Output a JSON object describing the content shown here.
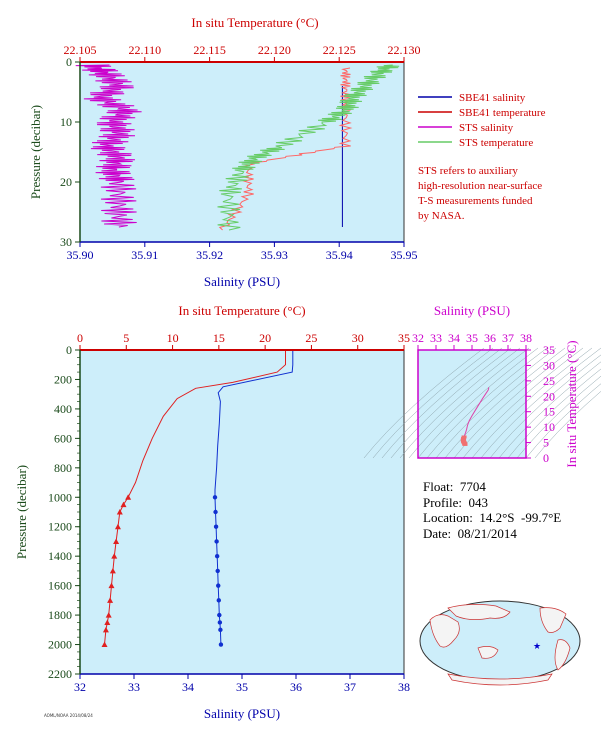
{
  "colors": {
    "red": "#cc0000",
    "blue": "#0000aa",
    "green": "#1a4a1a",
    "magenta": "#cc00cc",
    "bg": "#cdeefa",
    "sts_green": "#66cc66",
    "sts_magenta": "#cc00cc",
    "sbe_red": "#ff6666"
  },
  "top_chart": {
    "title_top": "In situ Temperature (°C)",
    "title_bottom": "Salinity (PSU)",
    "ylabel": "Pressure (decibar)",
    "temp_ticks": [
      "22.105",
      "22.110",
      "22.115",
      "22.120",
      "22.125",
      "22.130"
    ],
    "sal_ticks": [
      "35.90",
      "35.91",
      "35.92",
      "35.93",
      "35.94",
      "35.95"
    ],
    "p_ticks": [
      "0",
      "10",
      "20",
      "30"
    ],
    "legend": [
      {
        "label": "SBE41 salinity",
        "color": "#0000aa"
      },
      {
        "label": "SBE41 temperature",
        "color": "#cc0000"
      },
      {
        "label": "STS salinity",
        "color": "#cc00cc"
      },
      {
        "label": "STS temperature",
        "color": "#66cc66"
      }
    ],
    "note": [
      "STS refers to auxiliary",
      "high-resolution near-surface",
      "T-S measurements funded",
      "by NASA."
    ]
  },
  "main_chart": {
    "title_top": "In situ Temperature (°C)",
    "title_bottom": "Salinity (PSU)",
    "ylabel": "Pressure (decibar)",
    "temp_ticks": [
      "0",
      "5",
      "10",
      "15",
      "20",
      "25",
      "30",
      "35"
    ],
    "sal_ticks": [
      "32",
      "33",
      "34",
      "35",
      "36",
      "37",
      "38"
    ],
    "p_ticks": [
      "0",
      "200",
      "400",
      "600",
      "800",
      "1000",
      "1200",
      "1400",
      "1600",
      "1800",
      "2000",
      "2200"
    ]
  },
  "ts_chart": {
    "title": "Salinity (PSU)",
    "ylabel": "In situ Temperature (°C)",
    "sal_ticks": [
      "32",
      "33",
      "34",
      "35",
      "36",
      "37",
      "38"
    ],
    "temp_ticks": [
      "0",
      "5",
      "10",
      "15",
      "20",
      "25",
      "30",
      "35"
    ]
  },
  "info": {
    "float": "Float:  7704",
    "profile": "Profile:  043",
    "location": "Location:  14.2°S  -99.7°E",
    "date": "Date:  08/21/2014"
  },
  "footer": "AOML/NOAA 2014/08/24",
  "chart_data": [
    {
      "type": "line",
      "xlabel": "Salinity (PSU)",
      "x2label": "In situ Temperature (°C)",
      "ylabel": "Pressure (decibar)",
      "xlim": [
        35.9,
        35.95
      ],
      "x2lim": [
        22.105,
        22.13
      ],
      "ylim": [
        30,
        0
      ],
      "series": [
        {
          "name": "SBE41 salinity",
          "axis": "salinity",
          "x": [
            35.9405,
            35.9405,
            35.9405,
            35.9405
          ],
          "y": [
            4,
            10,
            20,
            27.5
          ]
        },
        {
          "name": "SBE41 temperature",
          "axis": "temperature",
          "x": [
            22.1255,
            22.1255,
            22.1255,
            22.1255,
            22.118,
            22.118,
            22.116
          ],
          "y": [
            1,
            4,
            8,
            14,
            17,
            22,
            28
          ]
        },
        {
          "name": "STS salinity",
          "axis": "salinity",
          "x": [
            35.902,
            35.904,
            35.906,
            35.903,
            35.907,
            35.905,
            35.906,
            35.904,
            35.906,
            35.905,
            35.906,
            35.906,
            35.906
          ],
          "y": [
            0.5,
            2,
            4,
            6,
            8,
            10,
            12,
            14,
            16,
            18,
            20,
            24,
            27.5
          ]
        },
        {
          "name": "STS temperature",
          "axis": "temperature",
          "x": [
            22.129,
            22.128,
            22.127,
            22.126,
            22.1255,
            22.124,
            22.1205,
            22.1185,
            22.1175,
            22.1165,
            22.1165
          ],
          "y": [
            0.5,
            2,
            4,
            6,
            8,
            10,
            14,
            16,
            18,
            22,
            28
          ]
        }
      ]
    },
    {
      "type": "line",
      "xlabel": "Salinity (PSU)",
      "x2label": "In situ Temperature (°C)",
      "ylabel": "Pressure (decibar)",
      "xlim": [
        32,
        38
      ],
      "x2lim": [
        0,
        35
      ],
      "ylim": [
        2200,
        0
      ],
      "series": [
        {
          "name": "Temperature",
          "axis": "temperature",
          "x": [
            22.2,
            22.2,
            21.3,
            16.5,
            12.5,
            10.5,
            9.0,
            7.8,
            6.8,
            6.0,
            5.2,
            4.7,
            4.3,
            4.1,
            3.9,
            3.7,
            3.55,
            3.4,
            3.25,
            3.1,
            2.95,
            2.8,
            2.65
          ],
          "y": [
            5,
            100,
            150,
            220,
            260,
            330,
            450,
            600,
            750,
            900,
            1000,
            1050,
            1100,
            1200,
            1300,
            1400,
            1500,
            1600,
            1700,
            1800,
            1850,
            1900,
            2000
          ]
        },
        {
          "name": "Salinity",
          "axis": "salinity",
          "x": [
            35.94,
            35.94,
            35.93,
            34.65,
            34.56,
            34.6,
            34.58,
            34.55,
            34.53,
            34.5,
            34.5,
            34.51,
            34.52,
            34.53,
            34.54,
            34.55,
            34.56,
            34.57,
            34.58,
            34.59,
            34.6,
            34.61
          ],
          "y": [
            5,
            100,
            150,
            250,
            290,
            350,
            500,
            650,
            800,
            950,
            1000,
            1100,
            1200,
            1300,
            1400,
            1500,
            1600,
            1700,
            1800,
            1850,
            1900,
            2000
          ]
        }
      ]
    },
    {
      "type": "scatter",
      "xlabel": "Salinity (PSU)",
      "ylabel": "In situ Temperature (°C)",
      "xlim": [
        32,
        38
      ],
      "ylim": [
        -2,
        35
      ],
      "series": [
        {
          "name": "T-S",
          "x": [
            35.94,
            35.9,
            35.6,
            35.2,
            35.0,
            34.85,
            34.75,
            34.7,
            34.65,
            34.6,
            34.56,
            34.53,
            34.52,
            34.52,
            34.53,
            34.55,
            34.58,
            34.6,
            34.61
          ],
          "y": [
            22.2,
            21.3,
            18.5,
            14.5,
            12.5,
            10.8,
            9.2,
            7.8,
            6.8,
            6.0,
            5.2,
            4.7,
            4.3,
            4.0,
            3.7,
            3.4,
            3.1,
            2.8,
            2.65
          ]
        }
      ]
    }
  ]
}
